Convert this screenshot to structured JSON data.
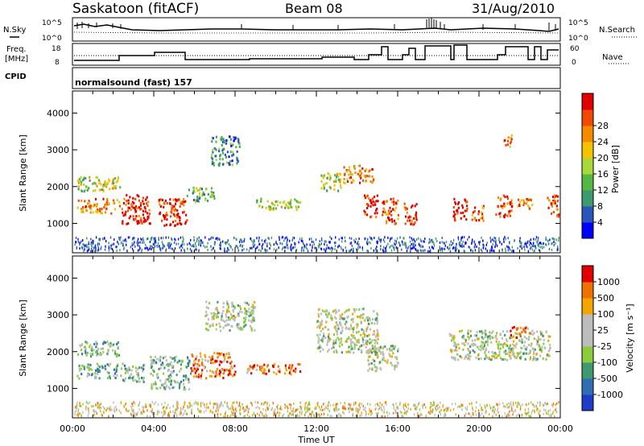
{
  "header": {
    "station": "Saskatoon (fitACF)",
    "beam": "Beam 08",
    "date": "31/Aug/2010"
  },
  "nsky_panel": {
    "left_label": "N.Sky",
    "left_ticks": [
      "10^5",
      "10^0"
    ],
    "right_label": "N.Search",
    "right_ticks": [
      "10^5",
      "10^0"
    ]
  },
  "freq_panel": {
    "left_label_line1": "Freq.",
    "left_label_line2": "[MHz]",
    "left_ticks": [
      "18",
      "8"
    ],
    "right_label": "Nave",
    "right_ticks": [
      "60",
      "0"
    ]
  },
  "cpid_panel": {
    "label": "CPID",
    "value": "normalsound (fast) 157"
  },
  "colors": {
    "power_scale": [
      "#0000ff",
      "#2a55bb",
      "#3c9a6e",
      "#55b845",
      "#a8d83a",
      "#f5c200",
      "#f58a00",
      "#ef4a00",
      "#e00000"
    ],
    "velocity_scale": [
      "#1e3cc8",
      "#2f6eb4",
      "#3c9a6e",
      "#8ccc3c",
      "#bdbdbd",
      "#bdbdbd",
      "#f5a500",
      "#f07000",
      "#e00000"
    ],
    "ground_scatter": "#bcbcbc"
  },
  "chart_data": [
    {
      "type": "heatmap",
      "name_of_quantity": "Power",
      "ylabel": "Slant Range [km]",
      "yticks": [
        "1000",
        "2000",
        "3000",
        "4000"
      ],
      "ylim": [
        200,
        4600
      ],
      "xlim_hours": [
        0,
        24
      ],
      "colorbar": {
        "title": "Power [dB]",
        "ticks": [
          "4",
          "8",
          "12",
          "16",
          "20",
          "24",
          "28"
        ]
      },
      "features": [
        {
          "t": [
            0.2,
            2.3
          ],
          "r": [
            1300,
            1700
          ],
          "level": 6
        },
        {
          "t": [
            0.2,
            2.4
          ],
          "r": [
            1900,
            2300
          ],
          "level": 4
        },
        {
          "t": [
            2.4,
            3.8
          ],
          "r": [
            1000,
            1800
          ],
          "level": 8
        },
        {
          "t": [
            4.2,
            5.6
          ],
          "r": [
            950,
            1700
          ],
          "level": 8
        },
        {
          "t": [
            5.6,
            7.0
          ],
          "r": [
            1600,
            2000
          ],
          "level": 3
        },
        {
          "t": [
            6.8,
            8.2
          ],
          "r": [
            2600,
            3400
          ],
          "level": 2
        },
        {
          "t": [
            9.0,
            11.2
          ],
          "r": [
            1400,
            1700
          ],
          "level": 4
        },
        {
          "t": [
            12.2,
            13.2
          ],
          "r": [
            1900,
            2400
          ],
          "level": 4
        },
        {
          "t": [
            13.3,
            14.8
          ],
          "r": [
            2100,
            2600
          ],
          "level": 6
        },
        {
          "t": [
            14.3,
            15.0
          ],
          "r": [
            1200,
            1800
          ],
          "level": 8
        },
        {
          "t": [
            15.2,
            16.0
          ],
          "r": [
            1000,
            1700
          ],
          "level": 7
        },
        {
          "t": [
            16.3,
            16.9
          ],
          "r": [
            1000,
            1600
          ],
          "level": 8
        },
        {
          "t": [
            18.7,
            19.4
          ],
          "r": [
            1100,
            1700
          ],
          "level": 8
        },
        {
          "t": [
            19.6,
            20.2
          ],
          "r": [
            1100,
            1500
          ],
          "level": 7
        },
        {
          "t": [
            20.8,
            21.6
          ],
          "r": [
            1200,
            1800
          ],
          "level": 7
        },
        {
          "t": [
            21.8,
            22.6
          ],
          "r": [
            1400,
            1700
          ],
          "level": 6
        },
        {
          "t": [
            23.3,
            23.9
          ],
          "r": [
            1200,
            1800
          ],
          "level": 7
        },
        {
          "t": [
            21.2,
            21.6
          ],
          "r": [
            3100,
            3450
          ],
          "level": 6
        }
      ]
    },
    {
      "type": "heatmap",
      "name_of_quantity": "Velocity",
      "ylabel": "Slant Range [km]",
      "yticks": [
        "1000",
        "2000",
        "3000",
        "4000"
      ],
      "ylim": [
        200,
        4600
      ],
      "xlim_hours": [
        0,
        24
      ],
      "xticks": [
        "00:00",
        "04:00",
        "08:00",
        "12:00",
        "16:00",
        "20:00",
        "00:00"
      ],
      "xlabel": "Time UT",
      "colorbar": {
        "title": "Velocity [m s⁻¹]",
        "ticks": [
          "1000",
          "500",
          "100",
          "25",
          "-25",
          "-100",
          "-500",
          "-1000"
        ]
      },
      "features": [
        {
          "t": [
            0.2,
            2.2
          ],
          "r": [
            1300,
            1700
          ],
          "level": 3
        },
        {
          "t": [
            0.2,
            2.3
          ],
          "r": [
            1900,
            2300
          ],
          "level": 3
        },
        {
          "t": [
            2.3,
            3.5
          ],
          "r": [
            1200,
            1700
          ],
          "level": 3
        },
        {
          "t": [
            3.8,
            5.8
          ],
          "r": [
            1000,
            1900
          ],
          "level": 3
        },
        {
          "t": [
            5.8,
            8.0
          ],
          "r": [
            1300,
            2000
          ],
          "level": 7
        },
        {
          "t": [
            8.5,
            11.2
          ],
          "r": [
            1400,
            1700
          ],
          "level": 7
        },
        {
          "t": [
            6.5,
            9.0
          ],
          "r": [
            2600,
            3400
          ],
          "level": 4
        },
        {
          "t": [
            12.0,
            15.0
          ],
          "r": [
            2000,
            3200
          ],
          "level": 4
        },
        {
          "t": [
            14.5,
            16.0
          ],
          "r": [
            1500,
            2200
          ],
          "level": 4
        },
        {
          "t": [
            18.5,
            23.5
          ],
          "r": [
            1800,
            2600
          ],
          "level": 4
        },
        {
          "t": [
            21.5,
            22.5
          ],
          "r": [
            2400,
            2700
          ],
          "level": 7
        }
      ]
    }
  ]
}
